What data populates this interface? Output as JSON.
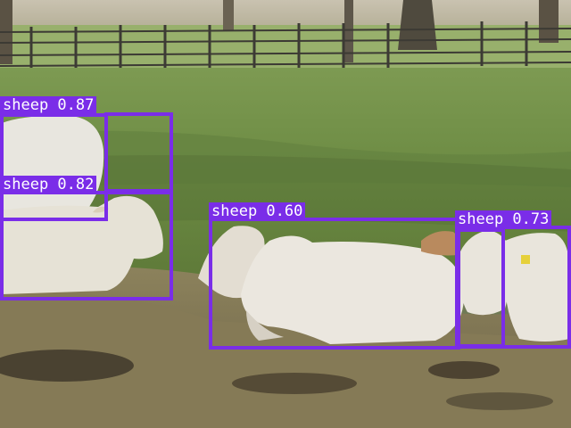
{
  "image": {
    "kind": "photo with object-detection overlay",
    "box_color": "#7a2de8",
    "label_text_color": "#ffffff"
  },
  "detections": [
    {
      "label": "sheep 0.87"
    },
    {
      "label": "sheep 0.82"
    },
    {
      "label": "sheep 0.60"
    },
    {
      "label": "sheep 0.73"
    }
  ]
}
